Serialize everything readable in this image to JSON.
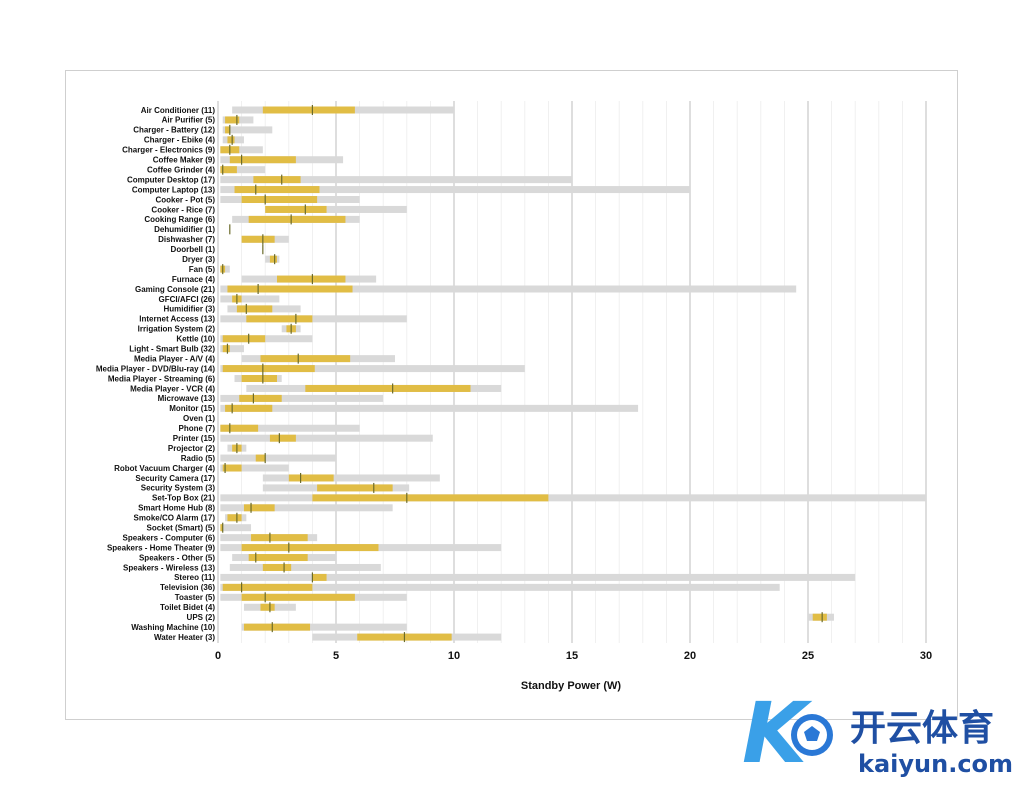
{
  "chart_data": {
    "type": "bar",
    "xlabel": "Standby Power (W)",
    "xlim": [
      0,
      30
    ],
    "xticks": [
      0,
      5,
      10,
      15,
      20,
      25,
      30
    ],
    "grid": true,
    "series_colors": {
      "range": "#d9d9d9",
      "iqr": "#e1bd45",
      "median": "#6b6b2a"
    },
    "rows": [
      {
        "label": "Air Conditioner (11)",
        "min": 0.6,
        "q1": 1.9,
        "median": 4.0,
        "q3": 5.8,
        "max": 10.0
      },
      {
        "label": "Air Purifier (5)",
        "min": 0.2,
        "q1": 0.3,
        "median": 0.8,
        "q3": 0.9,
        "max": 1.5
      },
      {
        "label": "Charger - Battery (12)",
        "min": 0.2,
        "q1": 0.3,
        "median": 0.5,
        "q3": 0.5,
        "max": 2.3
      },
      {
        "label": "Charger - Ebike (4)",
        "min": 0.2,
        "q1": 0.4,
        "median": 0.6,
        "q3": 0.7,
        "max": 1.1
      },
      {
        "label": "Charger - Electronics (9)",
        "min": 0.1,
        "q1": 0.1,
        "median": 0.5,
        "q3": 0.9,
        "max": 1.9
      },
      {
        "label": "Coffee Maker (9)",
        "min": 0.1,
        "q1": 0.5,
        "median": 1.0,
        "q3": 3.3,
        "max": 5.3
      },
      {
        "label": "Coffee Grinder (4)",
        "min": 0.1,
        "q1": 0.1,
        "median": 0.2,
        "q3": 0.8,
        "max": 2.0
      },
      {
        "label": "Computer Desktop (17)",
        "min": 0.1,
        "q1": 1.5,
        "median": 2.7,
        "q3": 3.5,
        "max": 15.0
      },
      {
        "label": "Computer Laptop (13)",
        "min": 0.1,
        "q1": 0.7,
        "median": 1.6,
        "q3": 4.3,
        "max": 20.0
      },
      {
        "label": "Cooker - Pot (5)",
        "min": 0.1,
        "q1": 1.0,
        "median": 2.0,
        "q3": 4.2,
        "max": 6.0
      },
      {
        "label": "Cooker - Rice (7)",
        "min": 2.0,
        "q1": 2.0,
        "median": 3.7,
        "q3": 4.6,
        "max": 8.0
      },
      {
        "label": "Cooking Range (6)",
        "min": 0.6,
        "q1": 1.3,
        "median": 3.1,
        "q3": 5.4,
        "max": 6.0
      },
      {
        "label": "Dehumidifier (1)",
        "min": 0.5,
        "q1": 0.5,
        "median": 0.5,
        "q3": 0.5,
        "max": 0.5
      },
      {
        "label": "Dishwasher (7)",
        "min": 1.0,
        "q1": 1.0,
        "median": 1.9,
        "q3": 2.4,
        "max": 3.0
      },
      {
        "label": "Doorbell (1)",
        "min": 1.9,
        "q1": 1.9,
        "median": 1.9,
        "q3": 1.9,
        "max": 1.9
      },
      {
        "label": "Dryer (3)",
        "min": 2.0,
        "q1": 2.2,
        "median": 2.4,
        "q3": 2.5,
        "max": 2.6
      },
      {
        "label": "Fan (5)",
        "min": 0.1,
        "q1": 0.1,
        "median": 0.2,
        "q3": 0.3,
        "max": 0.5
      },
      {
        "label": "Furnace (4)",
        "min": 1.0,
        "q1": 2.5,
        "median": 4.0,
        "q3": 5.4,
        "max": 6.7
      },
      {
        "label": "Gaming Console (21)",
        "min": 0.1,
        "q1": 0.4,
        "median": 1.7,
        "q3": 5.7,
        "max": 24.5
      },
      {
        "label": "GFCI/AFCI (26)",
        "min": 0.1,
        "q1": 0.6,
        "median": 0.8,
        "q3": 1.0,
        "max": 2.6
      },
      {
        "label": "Humidifier (3)",
        "min": 0.4,
        "q1": 0.8,
        "median": 1.2,
        "q3": 2.3,
        "max": 3.5
      },
      {
        "label": "Internet Access (13)",
        "min": 0.1,
        "q1": 1.2,
        "median": 3.3,
        "q3": 4.0,
        "max": 8.0
      },
      {
        "label": "Irrigation System (2)",
        "min": 2.7,
        "q1": 2.9,
        "median": 3.1,
        "q3": 3.3,
        "max": 3.5
      },
      {
        "label": "Kettle (10)",
        "min": 0.1,
        "q1": 0.2,
        "median": 1.3,
        "q3": 2.0,
        "max": 4.0
      },
      {
        "label": "Light - Smart Bulb (32)",
        "min": 0.1,
        "q1": 0.2,
        "median": 0.4,
        "q3": 0.5,
        "max": 1.1
      },
      {
        "label": "Media Player - A/V (4)",
        "min": 1.0,
        "q1": 1.8,
        "median": 3.4,
        "q3": 5.6,
        "max": 7.5
      },
      {
        "label": "Media Player - DVD/Blu-ray (14)",
        "min": 0.1,
        "q1": 0.2,
        "median": 1.9,
        "q3": 4.1,
        "max": 13.0
      },
      {
        "label": "Media Player - Streaming (6)",
        "min": 0.7,
        "q1": 1.0,
        "median": 1.9,
        "q3": 2.5,
        "max": 2.7
      },
      {
        "label": "Media Player - VCR (4)",
        "min": 1.2,
        "q1": 3.7,
        "median": 7.4,
        "q3": 10.7,
        "max": 12.0
      },
      {
        "label": "Microwave (13)",
        "min": 0.1,
        "q1": 0.9,
        "median": 1.5,
        "q3": 2.7,
        "max": 7.0
      },
      {
        "label": "Monitor (15)",
        "min": 0.1,
        "q1": 0.3,
        "median": 0.6,
        "q3": 2.3,
        "max": 17.8
      },
      {
        "label": "Oven (1)",
        "min": 0.0,
        "q1": 0.0,
        "median": 0.0,
        "q3": 0.0,
        "max": 0.0
      },
      {
        "label": "Phone (7)",
        "min": 0.1,
        "q1": 0.1,
        "median": 0.5,
        "q3": 1.7,
        "max": 6.0
      },
      {
        "label": "Printer (15)",
        "min": 0.1,
        "q1": 2.2,
        "median": 2.6,
        "q3": 3.3,
        "max": 9.1
      },
      {
        "label": "Projector (2)",
        "min": 0.4,
        "q1": 0.6,
        "median": 0.8,
        "q3": 1.0,
        "max": 1.2
      },
      {
        "label": "Radio (5)",
        "min": 0.1,
        "q1": 1.6,
        "median": 2.0,
        "q3": 2.0,
        "max": 5.0
      },
      {
        "label": "Robot Vacuum Charger (4)",
        "min": 0.1,
        "q1": 0.2,
        "median": 0.3,
        "q3": 1.0,
        "max": 3.0
      },
      {
        "label": "Security Camera (17)",
        "min": 1.9,
        "q1": 3.0,
        "median": 3.5,
        "q3": 4.9,
        "max": 9.4
      },
      {
        "label": "Security System (3)",
        "min": 1.9,
        "q1": 4.2,
        "median": 6.6,
        "q3": 7.4,
        "max": 8.1
      },
      {
        "label": "Set-Top Box (21)",
        "min": 0.1,
        "q1": 4.0,
        "median": 8.0,
        "q3": 14.0,
        "max": 30.0
      },
      {
        "label": "Smart Home Hub (8)",
        "min": 0.1,
        "q1": 1.1,
        "median": 1.4,
        "q3": 2.4,
        "max": 7.4
      },
      {
        "label": "Smoke/CO Alarm (17)",
        "min": 0.3,
        "q1": 0.4,
        "median": 0.8,
        "q3": 1.0,
        "max": 1.2
      },
      {
        "label": "Socket (Smart) (5)",
        "min": 0.1,
        "q1": 0.1,
        "median": 0.2,
        "q3": 0.2,
        "max": 1.4
      },
      {
        "label": "Speakers - Computer (6)",
        "min": 0.1,
        "q1": 1.4,
        "median": 2.2,
        "q3": 3.8,
        "max": 4.2
      },
      {
        "label": "Speakers - Home Theater (9)",
        "min": 0.1,
        "q1": 1.0,
        "median": 3.0,
        "q3": 6.8,
        "max": 12.0
      },
      {
        "label": "Speakers - Other (5)",
        "min": 0.6,
        "q1": 1.3,
        "median": 1.6,
        "q3": 3.8,
        "max": 5.0
      },
      {
        "label": "Speakers - Wireless (13)",
        "min": 0.5,
        "q1": 1.9,
        "median": 2.8,
        "q3": 3.1,
        "max": 6.9
      },
      {
        "label": "Stereo (11)",
        "min": 0.1,
        "q1": 4.0,
        "median": 4.0,
        "q3": 4.6,
        "max": 27.0
      },
      {
        "label": "Television (36)",
        "min": 0.1,
        "q1": 0.2,
        "median": 1.0,
        "q3": 4.0,
        "max": 23.8
      },
      {
        "label": "Toaster (5)",
        "min": 0.1,
        "q1": 1.0,
        "median": 2.0,
        "q3": 5.8,
        "max": 8.0
      },
      {
        "label": "Toilet Bidet (4)",
        "min": 1.1,
        "q1": 1.8,
        "median": 2.2,
        "q3": 2.4,
        "max": 3.3
      },
      {
        "label": "UPS (2)",
        "min": 25.0,
        "q1": 25.2,
        "median": 25.6,
        "q3": 25.8,
        "max": 26.1
      },
      {
        "label": "Washing Machine (10)",
        "min": 1.0,
        "q1": 1.1,
        "median": 2.3,
        "q3": 3.9,
        "max": 8.0
      },
      {
        "label": "Water Heater (3)",
        "min": 4.0,
        "q1": 5.9,
        "median": 7.9,
        "q3": 9.9,
        "max": 12.0
      }
    ]
  },
  "watermark": {
    "brand_cn": "开云体育",
    "brand_en": "kaiyun.com",
    "logo_glyph": "K",
    "icon": "soccer-ball-icon"
  }
}
